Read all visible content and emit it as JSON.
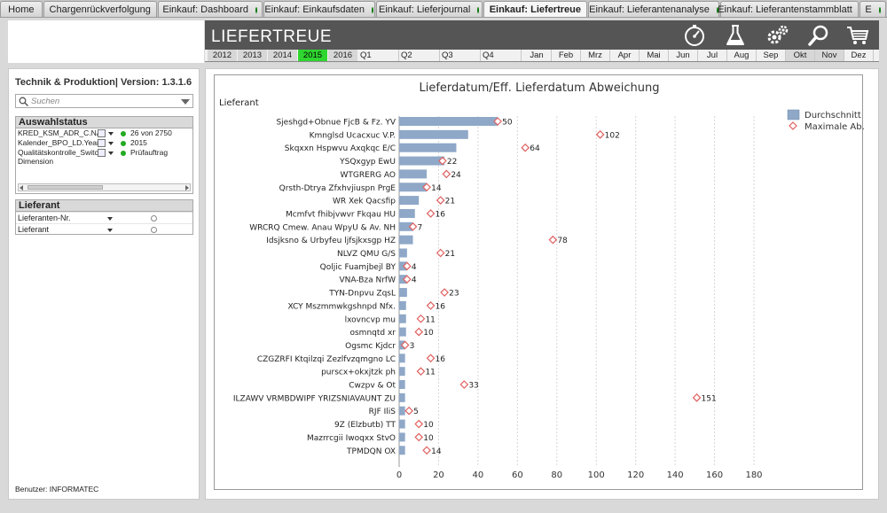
{
  "tabs": [
    {
      "label": "Home",
      "dot": false,
      "active": false,
      "width": 56
    },
    {
      "label": "Chargenrückverfolgung",
      "dot": false,
      "active": false,
      "width": 128
    },
    {
      "label": "Einkauf: Dashboard",
      "dot": true,
      "active": false,
      "width": 118
    },
    {
      "label": "Einkauf: Einkaufsdaten",
      "dot": true,
      "active": false,
      "width": 126
    },
    {
      "label": "Einkauf: Lieferjournal",
      "dot": true,
      "active": false,
      "width": 120
    },
    {
      "label": "Einkauf: Liefertreue",
      "dot": false,
      "active": true,
      "width": 124
    },
    {
      "label": "Einkauf: Lieferantenanalyse",
      "dot": true,
      "active": false,
      "width": 148
    },
    {
      "label": "Einkauf: Lieferantenstammblatt",
      "dot": true,
      "active": false,
      "width": 156
    },
    {
      "label": "E",
      "dot": true,
      "active": false,
      "width": 30
    }
  ],
  "header": {
    "title": "LIEFERTREUE",
    "icons": [
      "speedometer-icon",
      "flask-icon",
      "gears-icon",
      "magnifier-icon",
      "shopping-cart-icon"
    ]
  },
  "timeline": {
    "years": [
      "2012",
      "2013",
      "2014",
      "2015",
      "2016"
    ],
    "selected_year": "2015",
    "quarters": [
      "Q1",
      "Q2",
      "Q3",
      "Q4"
    ],
    "months": [
      "Jan",
      "Feb",
      "Mrz",
      "Apr",
      "Mai",
      "Jun",
      "Jul",
      "Aug",
      "Sep",
      "Okt",
      "Nov",
      "Dez"
    ],
    "highlighted_months": [
      "Okt",
      "Nov"
    ]
  },
  "sidebar": {
    "title": "Technik & Produktion| Version: 1.3.1.6",
    "search_placeholder": "Suchen",
    "status_box": {
      "title": "Auswahlstatus",
      "rows": [
        {
          "field": "KRED_KSM_ADR_C.NAME",
          "value": "26 von 2750"
        },
        {
          "field": "Kalender_BPO_LD.Year",
          "value": "2015"
        },
        {
          "field": "Qualitätskontrolle_Switch Dimension",
          "value": "Prüfauftrag"
        }
      ]
    },
    "lieferant_box": {
      "title": "Lieferant",
      "rows": [
        "Lieferanten-Nr.",
        "Lieferant"
      ]
    },
    "user": "Benutzer: INFORMATEC"
  },
  "chart_data": {
    "type": "bar",
    "orientation": "horizontal",
    "title": "Lieferdatum/Eff. Lieferdatum Abweichung",
    "dimension_label": "Lieferant",
    "categories": [
      "Sjeshgd+Obnue FjcB & Fz. YV",
      "Kmnglsd Ucacxuc V.P.",
      "Skqxxn Hspwvu Axqkqc E/C",
      "YSQxgyp EwU",
      "WTGRERG AO",
      "Qrsth-Dtrya Zfxhvjiuspn PrgE",
      "WR Xek Qacsfip",
      "Mcmfvt fhibjvwvr Fkqau HU",
      "WRCRQ Cmew. Anau WpyU & Av. NH",
      "Idsjksno & Urbyfeu ljfsjkxsgp HZ",
      "NLVZ QMU G/S",
      "Qoljic Fuamjbejl BY",
      "VNA-Bza NrfW",
      "TYN-Dnpvu ZqsL",
      "XCY Mszmmwkgshnpd Nfx.",
      "lxovncvp mu",
      "osmnqtd xr",
      "Ogsmc Kjdcr",
      "CZGZRFI Ktqilzqi Zezlfvzqmgno LC",
      "purscx+okxjtzk ph",
      "Cwzpv & Ot",
      "ILZAWV VRMBDWIPF YRIZSNIAVAUNT ZU",
      "RJF IliS",
      "9Z (Elzbutb) TT",
      "Mazrrcgii Iwoqxx StvO",
      "TPMDQN OX"
    ],
    "series": [
      {
        "name": "Durchschnitt",
        "kind": "bar",
        "color": "#8fa8c8",
        "values": [
          50,
          35,
          29,
          23,
          14,
          14,
          10,
          8,
          7,
          7,
          4,
          4,
          4,
          4,
          3.5,
          3.5,
          3.5,
          3,
          3,
          3,
          3,
          3,
          3,
          3,
          3,
          3
        ]
      },
      {
        "name": "Maximale Ab.",
        "kind": "marker",
        "color": "#e06060",
        "values": [
          50,
          102,
          64,
          22,
          24,
          14,
          21,
          16,
          7,
          78,
          21,
          4,
          4,
          23,
          16,
          11,
          10,
          3,
          16,
          11,
          33,
          151,
          5,
          10,
          10,
          14
        ]
      }
    ],
    "xlim": [
      0,
      180
    ],
    "xticks": [
      0,
      20,
      40,
      60,
      80,
      100,
      120,
      140,
      160,
      180
    ],
    "grid": true,
    "legend_position": "top-right"
  }
}
